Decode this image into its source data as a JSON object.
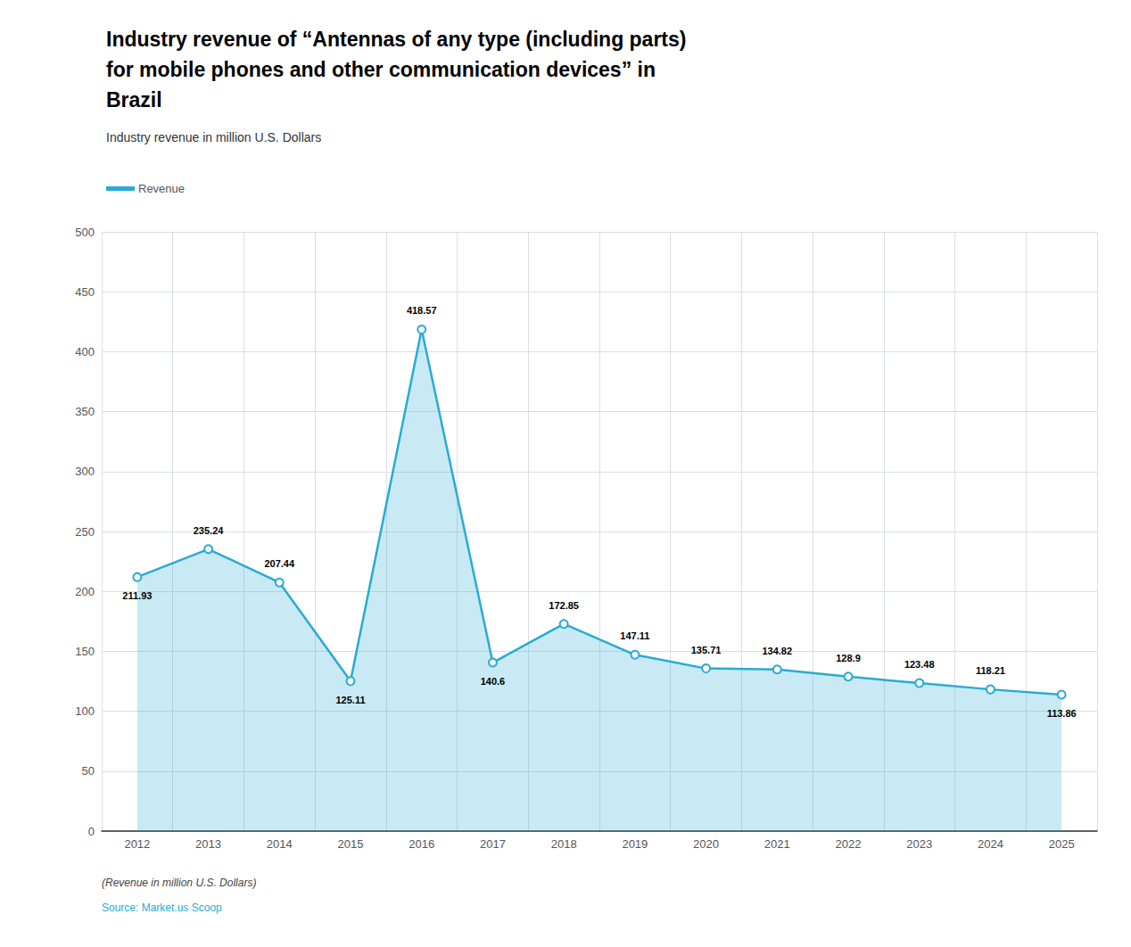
{
  "chart_data": {
    "type": "line",
    "title": "Industry revenue of “Antennas of any type (including parts)\nfor mobile phones and other communication devices” in\nBrazil",
    "subtitle": "Industry revenue in million U.S. Dollars",
    "annotations": [
      "(Revenue in million U.S. Dollars)",
      "Source: Market.us Scoop"
    ],
    "categories": [
      "2012",
      "2013",
      "2014",
      "2015",
      "2016",
      "2017",
      "2018",
      "2019",
      "2020",
      "2021",
      "2022",
      "2023",
      "2024",
      "2025"
    ],
    "series": [
      {
        "name": "Revenue",
        "color": "#29ABD4",
        "values": [
          211.93,
          235.24,
          207.44,
          125.11,
          418.57,
          140.6,
          172.85,
          147.11,
          135.71,
          134.82,
          128.9,
          123.48,
          118.21,
          113.86
        ]
      }
    ],
    "ylim": [
      0,
      500
    ],
    "yticks": [
      0,
      50,
      100,
      150,
      200,
      250,
      300,
      350,
      400,
      450,
      500
    ],
    "grid": true,
    "legend": "upper left",
    "data_labels": true,
    "marker": "circle"
  }
}
